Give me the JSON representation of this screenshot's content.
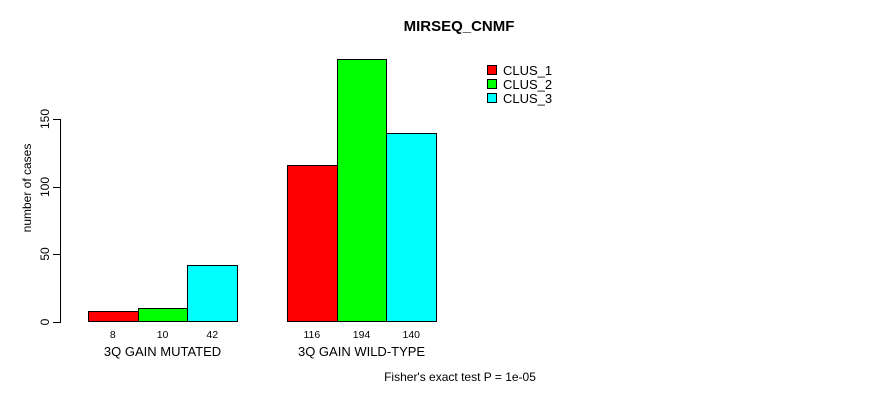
{
  "title": "MIRSEQ_CNMF",
  "footer": "Fisher's exact test P = 1e-05",
  "chart_data": {
    "type": "bar",
    "title": "MIRSEQ_CNMF",
    "xlabel": "",
    "ylabel": "number of cases",
    "categories": [
      "3Q GAIN MUTATED",
      "3Q GAIN WILD-TYPE"
    ],
    "series": [
      {
        "name": "CLUS_1",
        "color": "#ff0000",
        "values": [
          8,
          116
        ]
      },
      {
        "name": "CLUS_2",
        "color": "#00ff00",
        "values": [
          10,
          194
        ]
      },
      {
        "name": "CLUS_3",
        "color": "#00ffff",
        "values": [
          42,
          140
        ]
      }
    ],
    "bar_value_labels": [
      [
        "8",
        "10",
        "42"
      ],
      [
        "116",
        "194",
        "140"
      ]
    ],
    "yticks": [
      0,
      50,
      100,
      150
    ],
    "ylim": [
      0,
      194
    ],
    "grid": false,
    "legend_position": "top-right",
    "annotation": "Fisher's exact test P = 1e-05"
  }
}
